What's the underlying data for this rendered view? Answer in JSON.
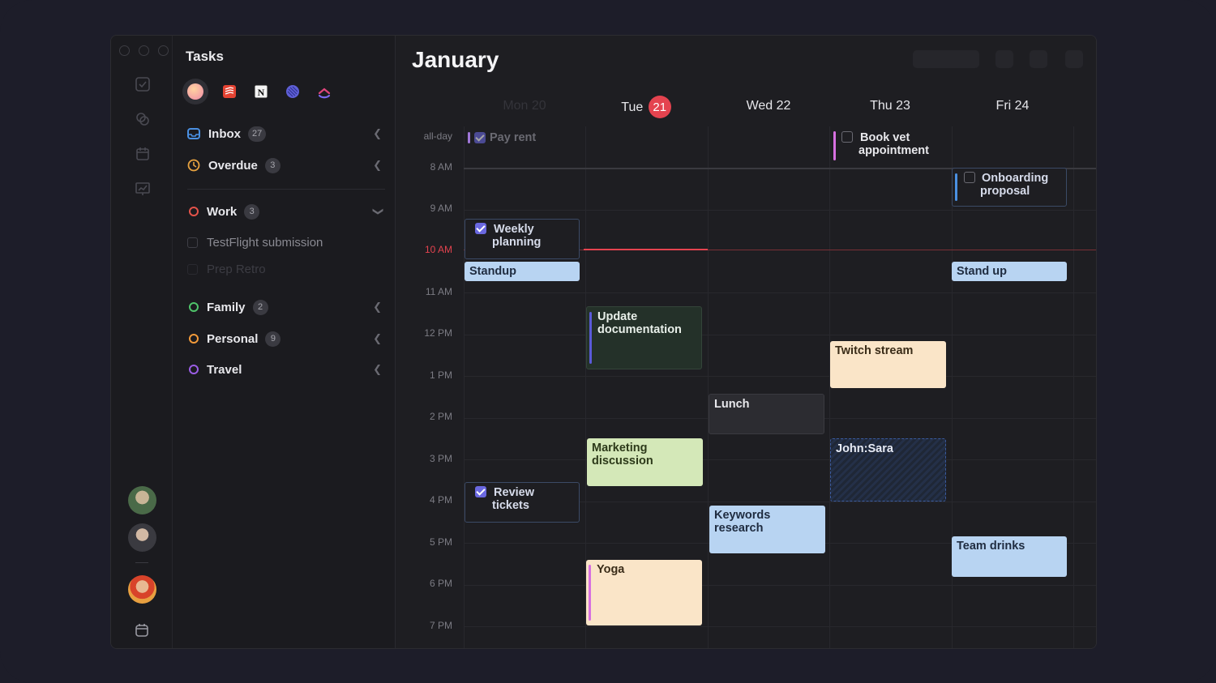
{
  "sidebar": {
    "title": "Tasks",
    "sources": [
      "avatar-source-icon",
      "todoist-icon",
      "notion-icon",
      "linear-icon",
      "clickup-icon"
    ],
    "groups": [
      {
        "label": "Inbox",
        "count": "27",
        "color": "#4a90e2"
      },
      {
        "label": "Overdue",
        "count": "3",
        "color": "#e8a340"
      }
    ],
    "lists": [
      {
        "label": "Work",
        "count": "3",
        "color": "#e4534a"
      },
      {
        "label": "Family",
        "count": "2",
        "color": "#4fc46a"
      },
      {
        "label": "Personal",
        "count": "9",
        "color": "#f29a3a"
      },
      {
        "label": "Travel",
        "count": "",
        "color": "#9b5de5"
      }
    ],
    "work_tasks": [
      "TestFlight submission",
      "Prep Retro"
    ]
  },
  "calendar": {
    "month": "January",
    "days": [
      {
        "label": "Mon 20"
      },
      {
        "label": "Tue",
        "num": "21"
      },
      {
        "label": "Wed 22"
      },
      {
        "label": "Thu 23"
      },
      {
        "label": "Fri 24"
      }
    ],
    "allday_label": "all-day",
    "times": [
      "8 AM",
      "9 AM",
      "10 AM",
      "11 AM",
      "12 PM",
      "1 PM",
      "2 PM",
      "3 PM",
      "4 PM",
      "5 PM",
      "6 PM",
      "7 PM"
    ],
    "events": {
      "pay_rent": "Pay rent",
      "book_vet_1": "Book vet",
      "book_vet_2": "appointment",
      "onboarding_1": "Onboarding",
      "onboarding_2": "proposal",
      "weekly_1": "Weekly",
      "weekly_2": "planning",
      "standup": "Standup",
      "stand_up": "Stand up",
      "update_doc_1": "Update",
      "update_doc_2": "documentation",
      "twitch": "Twitch stream",
      "lunch": "Lunch",
      "marketing_1": "Marketing",
      "marketing_2": "discussion",
      "john_sara": "John:Sara",
      "review_1": "Review",
      "review_2": "tickets",
      "keywords_1": "Keywords",
      "keywords_2": "research",
      "team_drinks": "Team drinks",
      "yoga": "Yoga"
    }
  }
}
